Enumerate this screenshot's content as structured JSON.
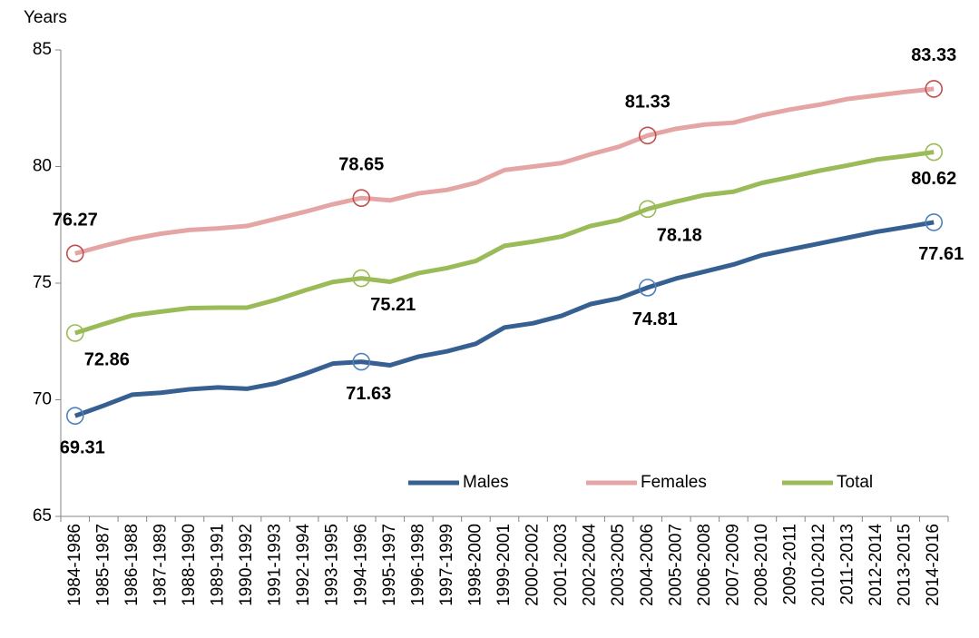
{
  "chart_data": {
    "type": "line",
    "y_label": "Years",
    "categories": [
      "1984-1986",
      "1985-1987",
      "1986-1988",
      "1987-1989",
      "1988-1990",
      "1989-1991",
      "1990-1992",
      "1991-1993",
      "1992-1994",
      "1993-1995",
      "1994-1996",
      "1995-1997",
      "1996-1998",
      "1997-1999",
      "1998-2000",
      "1999-2001",
      "2000-2002",
      "2001-2003",
      "2002-2004",
      "2003-2005",
      "2004-2006",
      "2005-2007",
      "2006-2008",
      "2007-2009",
      "2008-2010",
      "2009-2011",
      "2010-2012",
      "2011-2013",
      "2012-2014",
      "2013-2015",
      "2014-2016"
    ],
    "series": [
      {
        "name": "Males",
        "color": "#376092",
        "marker_color": "#4f81bd",
        "values": [
          69.31,
          69.75,
          70.22,
          70.3,
          70.45,
          70.53,
          70.47,
          70.7,
          71.1,
          71.55,
          71.63,
          71.48,
          71.85,
          72.08,
          72.4,
          73.1,
          73.28,
          73.6,
          74.1,
          74.35,
          74.81,
          75.2,
          75.5,
          75.8,
          76.2,
          76.45,
          76.7,
          76.95,
          77.2,
          77.4,
          77.61
        ],
        "value_labels": [
          "69.31",
          null,
          null,
          null,
          null,
          null,
          null,
          null,
          null,
          null,
          "71.63",
          null,
          null,
          null,
          null,
          null,
          null,
          null,
          null,
          null,
          "74.81",
          null,
          null,
          null,
          null,
          null,
          null,
          null,
          null,
          null,
          "77.61"
        ]
      },
      {
        "name": "Females",
        "color": "#e6a5a5",
        "marker_color": "#c0504d",
        "values": [
          76.27,
          76.6,
          76.9,
          77.12,
          77.28,
          77.35,
          77.45,
          77.75,
          78.05,
          78.38,
          78.65,
          78.55,
          78.85,
          79.0,
          79.3,
          79.85,
          80.0,
          80.15,
          80.52,
          80.85,
          81.33,
          81.62,
          81.8,
          81.88,
          82.2,
          82.45,
          82.65,
          82.9,
          83.05,
          83.2,
          83.33
        ],
        "value_labels": [
          "76.27",
          null,
          null,
          null,
          null,
          null,
          null,
          null,
          null,
          null,
          "78.65",
          null,
          null,
          null,
          null,
          null,
          null,
          null,
          null,
          null,
          "81.33",
          null,
          null,
          null,
          null,
          null,
          null,
          null,
          null,
          null,
          "83.33"
        ]
      },
      {
        "name": "Total",
        "color": "#9bbb59",
        "marker_color": "#9bbb59",
        "values": [
          72.86,
          73.25,
          73.62,
          73.78,
          73.93,
          73.95,
          73.95,
          74.28,
          74.68,
          75.05,
          75.21,
          75.06,
          75.43,
          75.65,
          75.95,
          76.6,
          76.78,
          77.0,
          77.45,
          77.7,
          78.18,
          78.5,
          78.78,
          78.92,
          79.3,
          79.55,
          79.82,
          80.05,
          80.3,
          80.45,
          80.62
        ],
        "value_labels": [
          "72.86",
          null,
          null,
          null,
          null,
          null,
          null,
          null,
          null,
          null,
          "75.21",
          null,
          null,
          null,
          null,
          null,
          null,
          null,
          null,
          null,
          "78.18",
          null,
          null,
          null,
          null,
          null,
          null,
          null,
          null,
          null,
          "80.62"
        ]
      }
    ],
    "ylim": [
      65,
      85
    ],
    "yticks": [
      65,
      70,
      75,
      80,
      85
    ],
    "grid": false,
    "legend": "lower right"
  }
}
